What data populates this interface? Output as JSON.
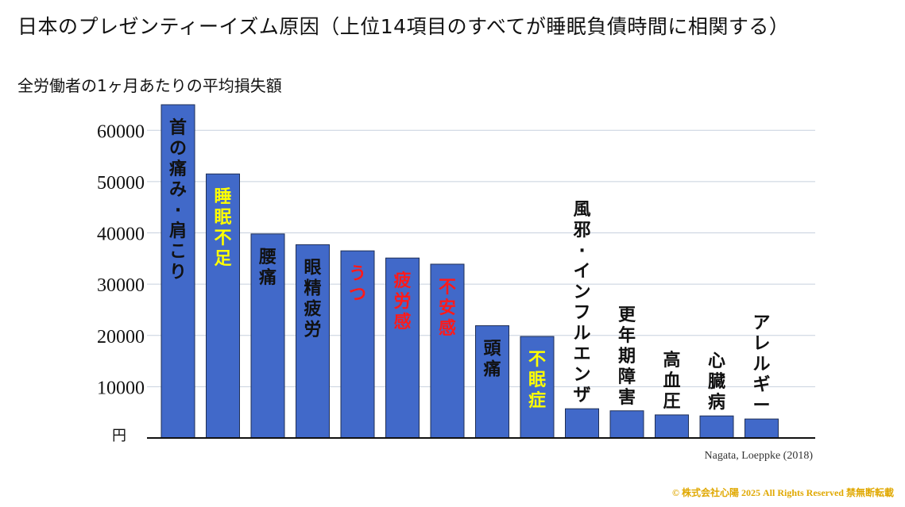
{
  "title": "日本のプレゼンティーイズム原因（上位14項目のすべてが睡眠負債時間に相関する）",
  "source": "Nagata, Loeppke (2018)",
  "copyright": "© 株式会社心陽 2025 All Rights Reserved 禁無断転載",
  "colors": {
    "bar": "#4169c9",
    "bar_border": "#1f2f55",
    "grid": "#c7d0de",
    "label_default": "#111111",
    "label_yellow": "#ffff00",
    "label_red": "#ff1a1a"
  },
  "chart_data": {
    "type": "bar",
    "title": "",
    "ylabel": "全労働者の1ヶ月あたりの平均損失額",
    "yunit": "円",
    "ylim": [
      0,
      65000
    ],
    "yticks": [
      10000,
      20000,
      30000,
      40000,
      50000,
      60000
    ],
    "grid": true,
    "categories": [
      "首の痛み・肩こり",
      "睡眠不足",
      "腰痛",
      "眼精疲労",
      "うつ",
      "疲労感",
      "不安感",
      "頭痛",
      "不眠症",
      "風邪・インフルエンザ",
      "更年期障害",
      "高血圧",
      "心臓病",
      "アレルギー"
    ],
    "values": [
      65000,
      51500,
      39800,
      37700,
      36500,
      35100,
      33900,
      21900,
      19800,
      5700,
      5300,
      4500,
      4300,
      3700
    ],
    "label_colors": [
      "default",
      "yellow",
      "default",
      "default",
      "red",
      "red",
      "red",
      "default",
      "yellow",
      "default",
      "default",
      "default",
      "default",
      "default"
    ]
  }
}
